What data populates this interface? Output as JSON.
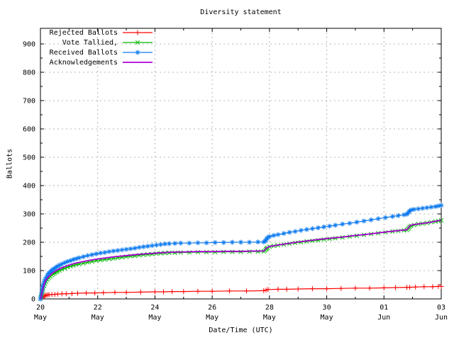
{
  "chart_data": {
    "type": "line",
    "title": "Diversity statement",
    "xlabel": "Date/Time (UTC)",
    "ylabel": "Ballots",
    "grid": true,
    "legend_position": "top-left",
    "ylim": [
      0,
      955
    ],
    "xlim_days": [
      0,
      14
    ],
    "y_ticks": [
      0,
      100,
      200,
      300,
      400,
      500,
      600,
      700,
      800,
      900
    ],
    "y_minor_ticks": [
      50,
      150,
      250,
      350,
      450,
      550,
      650,
      750,
      850
    ],
    "x_minor_tick_days": [
      1,
      3,
      5,
      7,
      9,
      11,
      13
    ],
    "x_ticks": [
      {
        "day": 0,
        "top": "20",
        "bottom": "May"
      },
      {
        "day": 2,
        "top": "22",
        "bottom": "May"
      },
      {
        "day": 4,
        "top": "24",
        "bottom": "May"
      },
      {
        "day": 6,
        "top": "26",
        "bottom": "May"
      },
      {
        "day": 8,
        "top": "28",
        "bottom": "May"
      },
      {
        "day": 10,
        "top": "30",
        "bottom": "May"
      },
      {
        "day": 12,
        "top": "01",
        "bottom": "Jun"
      },
      {
        "day": 14,
        "top": "03",
        "bottom": "Jun"
      }
    ],
    "colors": {
      "axis": "#000000",
      "grid": "#b4b4b4",
      "background": "#ffffff"
    },
    "series": [
      {
        "name": "Rejected Ballots",
        "color": "#ff0000",
        "marker": "plus",
        "line_width": 1.2,
        "points": [
          [
            0,
            0
          ],
          [
            0.05,
            4
          ],
          [
            0.08,
            7
          ],
          [
            0.12,
            10
          ],
          [
            0.16,
            12
          ],
          [
            0.2,
            13
          ],
          [
            0.25,
            14
          ],
          [
            0.3,
            15
          ],
          [
            0.4,
            16
          ],
          [
            0.5,
            16
          ],
          [
            0.6,
            17
          ],
          [
            0.75,
            18
          ],
          [
            0.9,
            18
          ],
          [
            1.1,
            19
          ],
          [
            1.3,
            20
          ],
          [
            1.6,
            21
          ],
          [
            1.9,
            21
          ],
          [
            2.2,
            22
          ],
          [
            2.6,
            23
          ],
          [
            3.0,
            23
          ],
          [
            3.5,
            24
          ],
          [
            4.0,
            25
          ],
          [
            4.3,
            25
          ],
          [
            4.6,
            26
          ],
          [
            5.0,
            26
          ],
          [
            5.5,
            27
          ],
          [
            6.0,
            27
          ],
          [
            6.6,
            28
          ],
          [
            7.2,
            28
          ],
          [
            7.8,
            29
          ],
          [
            7.88,
            31
          ],
          [
            7.95,
            33
          ],
          [
            8.3,
            34
          ],
          [
            8.6,
            34
          ],
          [
            9.0,
            35
          ],
          [
            9.5,
            36
          ],
          [
            10.0,
            36
          ],
          [
            10.5,
            37
          ],
          [
            11.0,
            38
          ],
          [
            11.5,
            38
          ],
          [
            12.0,
            39
          ],
          [
            12.4,
            40
          ],
          [
            12.8,
            41
          ],
          [
            12.9,
            41
          ],
          [
            13.1,
            42
          ],
          [
            13.4,
            43
          ],
          [
            13.7,
            43
          ],
          [
            13.9,
            44
          ],
          [
            14,
            44
          ]
        ]
      },
      {
        "name": "Vote Tallied,",
        "color": "#00b800",
        "marker": "cross",
        "line_width": 1.2,
        "points": [
          [
            0,
            0
          ],
          [
            0.02,
            6
          ],
          [
            0.04,
            14
          ],
          [
            0.06,
            22
          ],
          [
            0.08,
            30
          ],
          [
            0.1,
            37
          ],
          [
            0.13,
            46
          ],
          [
            0.16,
            53
          ],
          [
            0.2,
            60
          ],
          [
            0.25,
            68
          ],
          [
            0.3,
            74
          ],
          [
            0.35,
            79
          ],
          [
            0.4,
            84
          ],
          [
            0.45,
            88
          ],
          [
            0.5,
            91
          ],
          [
            0.55,
            94
          ],
          [
            0.6,
            97
          ],
          [
            0.67,
            100
          ],
          [
            0.75,
            104
          ],
          [
            0.85,
            108
          ],
          [
            0.95,
            112
          ],
          [
            1.05,
            115
          ],
          [
            1.15,
            118
          ],
          [
            1.25,
            121
          ],
          [
            1.35,
            123
          ],
          [
            1.5,
            126
          ],
          [
            1.65,
            129
          ],
          [
            1.8,
            132
          ],
          [
            1.95,
            135
          ],
          [
            2.1,
            137
          ],
          [
            2.25,
            139
          ],
          [
            2.4,
            141
          ],
          [
            2.55,
            143
          ],
          [
            2.7,
            145
          ],
          [
            2.85,
            147
          ],
          [
            3.0,
            149
          ],
          [
            3.15,
            151
          ],
          [
            3.3,
            152
          ],
          [
            3.45,
            154
          ],
          [
            3.6,
            156
          ],
          [
            3.75,
            157
          ],
          [
            3.9,
            158
          ],
          [
            4.05,
            160
          ],
          [
            4.2,
            161
          ],
          [
            4.35,
            162
          ],
          [
            4.5,
            163
          ],
          [
            4.7,
            163
          ],
          [
            4.9,
            164
          ],
          [
            5.2,
            164
          ],
          [
            5.5,
            165
          ],
          [
            5.8,
            165
          ],
          [
            6.1,
            165
          ],
          [
            6.4,
            166
          ],
          [
            6.7,
            166
          ],
          [
            7.0,
            166
          ],
          [
            7.3,
            167
          ],
          [
            7.6,
            167
          ],
          [
            7.8,
            168
          ],
          [
            7.85,
            171
          ],
          [
            7.88,
            175
          ],
          [
            7.9,
            178
          ],
          [
            7.93,
            181
          ],
          [
            8.0,
            184
          ],
          [
            8.15,
            187
          ],
          [
            8.3,
            189
          ],
          [
            8.5,
            192
          ],
          [
            8.7,
            195
          ],
          [
            8.9,
            198
          ],
          [
            9.1,
            200
          ],
          [
            9.3,
            203
          ],
          [
            9.5,
            205
          ],
          [
            9.7,
            207
          ],
          [
            9.9,
            210
          ],
          [
            10.1,
            212
          ],
          [
            10.3,
            214
          ],
          [
            10.55,
            217
          ],
          [
            10.8,
            220
          ],
          [
            11.05,
            223
          ],
          [
            11.3,
            226
          ],
          [
            11.55,
            229
          ],
          [
            11.8,
            232
          ],
          [
            12.05,
            235
          ],
          [
            12.3,
            238
          ],
          [
            12.5,
            240
          ],
          [
            12.7,
            242
          ],
          [
            12.8,
            243
          ],
          [
            12.84,
            247
          ],
          [
            12.87,
            251
          ],
          [
            12.9,
            255
          ],
          [
            12.95,
            258
          ],
          [
            13.05,
            261
          ],
          [
            13.2,
            264
          ],
          [
            13.35,
            266
          ],
          [
            13.5,
            268
          ],
          [
            13.65,
            271
          ],
          [
            13.8,
            273
          ],
          [
            13.9,
            275
          ],
          [
            14,
            277
          ]
        ]
      },
      {
        "name": "Received Ballots",
        "color": "#0e7bef",
        "marker": "asterisk",
        "line_width": 1.2,
        "points": [
          [
            0,
            0
          ],
          [
            0.02,
            10
          ],
          [
            0.04,
            22
          ],
          [
            0.06,
            32
          ],
          [
            0.08,
            42
          ],
          [
            0.1,
            50
          ],
          [
            0.13,
            60
          ],
          [
            0.16,
            68
          ],
          [
            0.2,
            76
          ],
          [
            0.25,
            85
          ],
          [
            0.3,
            91
          ],
          [
            0.35,
            96
          ],
          [
            0.4,
            101
          ],
          [
            0.45,
            105
          ],
          [
            0.5,
            108
          ],
          [
            0.55,
            112
          ],
          [
            0.6,
            115
          ],
          [
            0.67,
            119
          ],
          [
            0.75,
            123
          ],
          [
            0.85,
            128
          ],
          [
            0.95,
            132
          ],
          [
            1.05,
            135
          ],
          [
            1.15,
            139
          ],
          [
            1.25,
            142
          ],
          [
            1.35,
            145
          ],
          [
            1.5,
            149
          ],
          [
            1.65,
            153
          ],
          [
            1.8,
            156
          ],
          [
            1.95,
            159
          ],
          [
            2.1,
            162
          ],
          [
            2.25,
            164
          ],
          [
            2.4,
            167
          ],
          [
            2.55,
            169
          ],
          [
            2.7,
            171
          ],
          [
            2.85,
            173
          ],
          [
            3.0,
            175
          ],
          [
            3.15,
            177
          ],
          [
            3.3,
            179
          ],
          [
            3.45,
            182
          ],
          [
            3.6,
            184
          ],
          [
            3.75,
            186
          ],
          [
            3.9,
            188
          ],
          [
            4.05,
            190
          ],
          [
            4.2,
            192
          ],
          [
            4.35,
            194
          ],
          [
            4.5,
            195
          ],
          [
            4.7,
            196
          ],
          [
            4.9,
            197
          ],
          [
            5.2,
            197
          ],
          [
            5.5,
            198
          ],
          [
            5.8,
            198
          ],
          [
            6.1,
            199
          ],
          [
            6.4,
            199
          ],
          [
            6.7,
            200
          ],
          [
            7.0,
            200
          ],
          [
            7.3,
            200
          ],
          [
            7.6,
            201
          ],
          [
            7.8,
            201
          ],
          [
            7.85,
            204
          ],
          [
            7.88,
            208
          ],
          [
            7.9,
            212
          ],
          [
            7.93,
            216
          ],
          [
            8.0,
            220
          ],
          [
            8.15,
            224
          ],
          [
            8.3,
            227
          ],
          [
            8.5,
            231
          ],
          [
            8.7,
            235
          ],
          [
            8.9,
            238
          ],
          [
            9.1,
            242
          ],
          [
            9.3,
            245
          ],
          [
            9.5,
            248
          ],
          [
            9.7,
            251
          ],
          [
            9.9,
            254
          ],
          [
            10.1,
            257
          ],
          [
            10.3,
            260
          ],
          [
            10.55,
            264
          ],
          [
            10.8,
            267
          ],
          [
            11.05,
            271
          ],
          [
            11.3,
            275
          ],
          [
            11.55,
            279
          ],
          [
            11.8,
            283
          ],
          [
            12.05,
            287
          ],
          [
            12.3,
            291
          ],
          [
            12.5,
            294
          ],
          [
            12.7,
            297
          ],
          [
            12.8,
            299
          ],
          [
            12.84,
            303
          ],
          [
            12.87,
            307
          ],
          [
            12.9,
            311
          ],
          [
            12.95,
            314
          ],
          [
            13.05,
            316
          ],
          [
            13.2,
            318
          ],
          [
            13.35,
            320
          ],
          [
            13.5,
            322
          ],
          [
            13.65,
            324
          ],
          [
            13.8,
            326
          ],
          [
            13.9,
            328
          ],
          [
            14,
            330
          ]
        ]
      },
      {
        "name": "Acknowledgements",
        "color": "#aa00d4",
        "marker": "none",
        "line_width": 1.8,
        "points": [
          [
            0,
            0
          ],
          [
            0.05,
            20
          ],
          [
            0.1,
            42
          ],
          [
            0.15,
            58
          ],
          [
            0.2,
            68
          ],
          [
            0.3,
            80
          ],
          [
            0.4,
            90
          ],
          [
            0.5,
            97
          ],
          [
            0.6,
            103
          ],
          [
            0.75,
            110
          ],
          [
            0.9,
            116
          ],
          [
            1.05,
            121
          ],
          [
            1.25,
            127
          ],
          [
            1.5,
            132
          ],
          [
            1.75,
            137
          ],
          [
            2.0,
            141
          ],
          [
            2.3,
            145
          ],
          [
            2.6,
            149
          ],
          [
            3.0,
            153
          ],
          [
            3.4,
            157
          ],
          [
            3.8,
            160
          ],
          [
            4.2,
            163
          ],
          [
            4.6,
            165
          ],
          [
            5.0,
            166
          ],
          [
            5.5,
            167
          ],
          [
            6.0,
            167
          ],
          [
            6.5,
            168
          ],
          [
            7.0,
            168
          ],
          [
            7.5,
            169
          ],
          [
            7.8,
            169
          ],
          [
            7.9,
            180
          ],
          [
            8.0,
            185
          ],
          [
            8.3,
            190
          ],
          [
            8.6,
            195
          ],
          [
            9.0,
            201
          ],
          [
            9.4,
            206
          ],
          [
            9.8,
            211
          ],
          [
            10.2,
            215
          ],
          [
            10.6,
            219
          ],
          [
            11.0,
            224
          ],
          [
            11.4,
            228
          ],
          [
            11.8,
            233
          ],
          [
            12.2,
            238
          ],
          [
            12.6,
            242
          ],
          [
            12.8,
            244
          ],
          [
            12.9,
            258
          ],
          [
            13.0,
            262
          ],
          [
            13.3,
            266
          ],
          [
            13.6,
            270
          ],
          [
            14,
            278
          ]
        ]
      }
    ]
  }
}
